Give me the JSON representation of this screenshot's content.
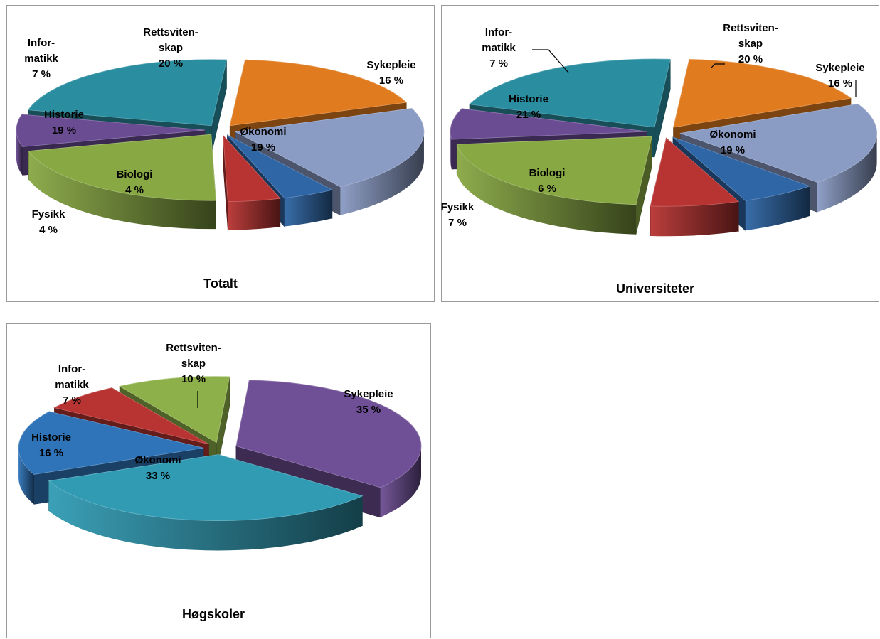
{
  "chart_data": [
    {
      "type": "pie",
      "title": "Totalt",
      "slices": [
        {
          "label": "Sykepleie",
          "value": 16,
          "value_text": "16 %",
          "color": "#e07b1f"
        },
        {
          "label": "Økonomi",
          "value": 19,
          "value_text": "19 %",
          "color": "#8a9bc4"
        },
        {
          "label": "Biologi",
          "value": 4,
          "value_text": "4 %",
          "color": "#2f66a6"
        },
        {
          "label": "Fysikk",
          "value": 4,
          "value_text": "4 %",
          "color": "#b73432"
        },
        {
          "label": "Historie",
          "value": 19,
          "value_text": "19 %",
          "color": "#88a844"
        },
        {
          "label": "Infor-\nmatikk",
          "value": 7,
          "value_text": "7 %",
          "color": "#6a4c93"
        },
        {
          "label": "Rettsviten-\nskap",
          "value": 20,
          "value_text": "20 %",
          "color": "#2a8da0"
        }
      ]
    },
    {
      "type": "pie",
      "title": "Universiteter",
      "slices": [
        {
          "label": "Sykepleie",
          "value": 16,
          "value_text": "16 %",
          "color": "#e07b1f"
        },
        {
          "label": "Økonomi",
          "value": 19,
          "value_text": "19 %",
          "color": "#8a9bc4"
        },
        {
          "label": "Biologi",
          "value": 6,
          "value_text": "6 %",
          "color": "#2f66a6"
        },
        {
          "label": "Fysikk",
          "value": 7,
          "value_text": "7 %",
          "color": "#b73432"
        },
        {
          "label": "Historie",
          "value": 21,
          "value_text": "21 %",
          "color": "#88a844"
        },
        {
          "label": "Infor-\nmatikk",
          "value": 7,
          "value_text": "7 %",
          "color": "#6a4c93"
        },
        {
          "label": "Rettsviten-\nskap",
          "value": 20,
          "value_text": "20 %",
          "color": "#2a8da0"
        }
      ]
    },
    {
      "type": "pie",
      "title": "Høgskoler",
      "slices": [
        {
          "label": "Sykepleie",
          "value": 35,
          "value_text": "35 %",
          "color": "#6f4f95"
        },
        {
          "label": "Økonomi",
          "value": 33,
          "value_text": "33 %",
          "color": "#319bb3"
        },
        {
          "label": "Historie",
          "value": 16,
          "value_text": "16 %",
          "color": "#2f74b8"
        },
        {
          "label": "Infor-\nmatikk",
          "value": 7,
          "value_text": "7 %",
          "color": "#b73432"
        },
        {
          "label": "Rettsviten-\nskap",
          "value": 10,
          "value_text": "10 %",
          "color": "#8db04a"
        }
      ]
    }
  ]
}
